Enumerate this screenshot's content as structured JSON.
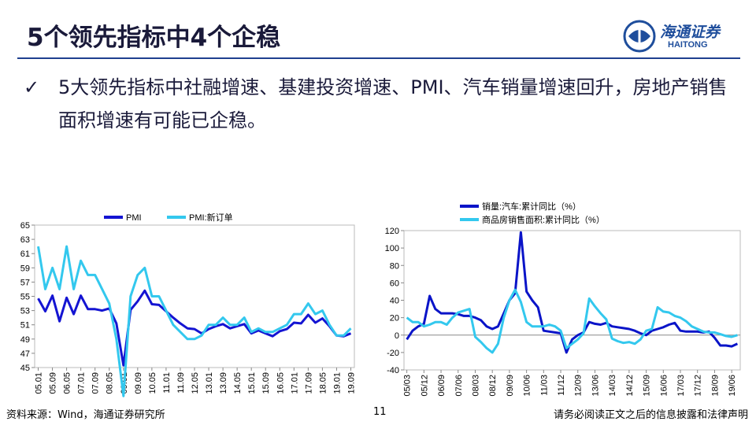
{
  "header": {
    "title": "5个领先指标中4个企稳",
    "logo": "海通证券",
    "logo_en": "HAITONG"
  },
  "bullet": "5大领先指标中社融增速、基建投资增速、PMI、汽车销量增速回升，房地产销售面积增速有可能已企稳。",
  "footer": {
    "source": "资料来源：Wind，海通证券研究所",
    "page": "11",
    "disclaimer": "请务必阅读正文之后的信息披露和法律声明"
  },
  "chart_data": [
    {
      "type": "line",
      "categories": [
        "05.01",
        null,
        "05.09",
        null,
        "06.05",
        null,
        "07.01",
        null,
        "07.09",
        null,
        "08.05",
        null,
        "09.01",
        null,
        "09.09",
        null,
        "10.05",
        null,
        "11.01",
        null,
        "11.09",
        null,
        "12.05",
        null,
        "13.01",
        null,
        "13.09",
        null,
        "14.05",
        null,
        "15.01",
        null,
        "15.09",
        null,
        "16.05",
        null,
        "17.01",
        null,
        "17.09",
        null,
        "18.05",
        null,
        "19.01",
        null,
        "19.09"
      ],
      "series": [
        {
          "name": "PMI",
          "color": "#1414d2",
          "values": [
            54.7,
            52.9,
            55.1,
            51.5,
            54.8,
            52.5,
            55.1,
            53.2,
            53.2,
            53.0,
            53.3,
            51.2,
            45.3,
            53.1,
            54.3,
            55.8,
            53.9,
            53.8,
            52.9,
            52.0,
            51.2,
            50.5,
            50.4,
            49.8,
            50.4,
            50.8,
            51.1,
            50.5,
            50.8,
            51.1,
            49.8,
            50.2,
            49.8,
            49.4,
            50.1,
            50.4,
            51.3,
            51.2,
            52.4,
            51.3,
            51.9,
            50.8,
            49.5,
            49.4,
            49.8
          ]
        },
        {
          "name": "PMI:新订单",
          "color": "#33c8ee",
          "values": [
            62,
            56,
            59,
            56,
            62,
            56,
            60,
            58,
            58,
            56,
            54,
            49,
            41,
            55,
            58,
            59,
            55,
            55,
            53,
            51,
            50,
            49,
            49,
            49.5,
            51,
            51,
            52,
            51,
            51,
            52,
            50,
            50.5,
            50,
            50,
            50.5,
            51,
            52.5,
            52.5,
            54,
            52.5,
            53,
            51,
            49.5,
            49.5,
            50.5
          ]
        }
      ],
      "ylim": [
        45,
        65
      ],
      "yticks": [
        45,
        47,
        49,
        51,
        53,
        55,
        57,
        59,
        61,
        63,
        65
      ]
    },
    {
      "type": "line",
      "categories": [
        "05/03",
        null,
        null,
        "05/12",
        null,
        null,
        "06/09",
        null,
        null,
        "07/06",
        null,
        null,
        "08/03",
        null,
        null,
        "08/12",
        null,
        null,
        "09/09",
        null,
        null,
        "10/06",
        null,
        null,
        "11/03",
        null,
        null,
        "11/12",
        null,
        null,
        "12/09",
        null,
        null,
        "13/06",
        null,
        null,
        "14/03",
        null,
        null,
        "14/12",
        null,
        null,
        "15/09",
        null,
        null,
        "16/06",
        null,
        null,
        "17/03",
        null,
        null,
        "17/12",
        null,
        null,
        "18/09",
        null,
        null,
        "19/06",
        null
      ],
      "series": [
        {
          "name": "销量:汽车:累计同比（%）",
          "color": "#0a14c8",
          "values": [
            -5,
            5,
            10,
            13,
            45,
            30,
            25,
            25,
            25,
            24,
            22,
            22,
            20,
            17,
            10,
            7,
            10,
            25,
            40,
            48,
            118,
            50,
            40,
            32,
            5,
            4,
            3,
            2,
            -20,
            -5,
            0,
            3,
            15,
            13,
            12,
            14,
            10,
            9,
            8,
            7,
            5,
            2,
            0,
            5,
            7,
            9,
            12,
            14,
            5,
            4,
            4,
            4,
            3,
            4,
            -3,
            -12,
            -12,
            -13,
            -10
          ]
        },
        {
          "name": "商品房销售面积:累计同比（%）",
          "color": "#33c8ee",
          "values": [
            20,
            15,
            15,
            10,
            12,
            15,
            15,
            12,
            20,
            26,
            28,
            30,
            -2,
            -8,
            -15,
            -20,
            -10,
            20,
            40,
            52,
            38,
            15,
            10,
            10,
            10,
            12,
            10,
            5,
            -15,
            -10,
            -5,
            2,
            42,
            33,
            25,
            18,
            -4,
            -7,
            -9,
            -8,
            -10,
            -5,
            5,
            7,
            32,
            27,
            26,
            22,
            20,
            16,
            10,
            7,
            4,
            3,
            3,
            1,
            -1,
            -2,
            0
          ]
        }
      ],
      "ylim": [
        -40,
        120
      ],
      "yticks": [
        -40,
        -20,
        0,
        20,
        40,
        60,
        80,
        100,
        120
      ]
    }
  ]
}
